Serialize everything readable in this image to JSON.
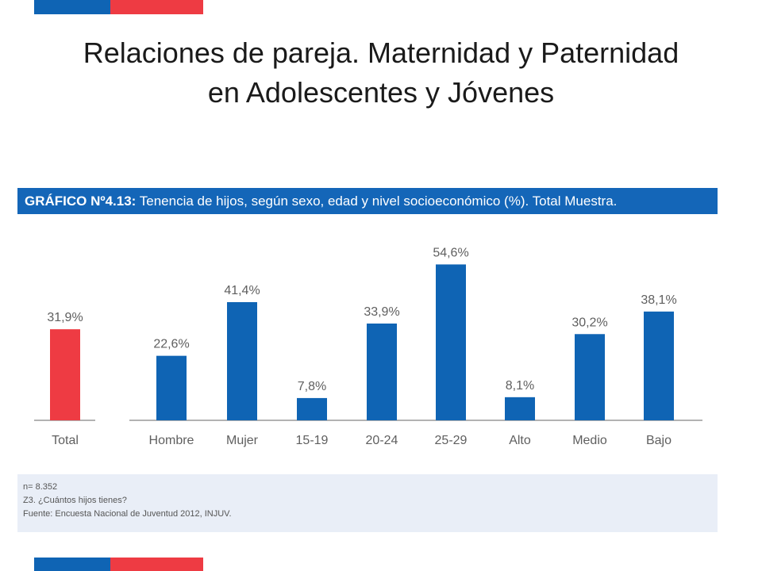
{
  "slide": {
    "title_line1": "Relaciones de pareja. Maternidad y Paternidad",
    "title_line2": "en Adolescentes y Jóvenes"
  },
  "colors": {
    "flag_blue": "#0f64b4",
    "flag_red": "#ee3b43",
    "bar_blue": "#0f64b4",
    "bar_red": "#ee3b43",
    "header_bg": "#1466b8",
    "notes_bg": "#e9eef7"
  },
  "chart_header": {
    "label": "GRÁFICO Nº4.13:",
    "text": "Tenencia de hijos, según sexo, edad y nivel socioeconómico (%). Total Muestra."
  },
  "chart_data": {
    "type": "bar",
    "title": "GRÁFICO Nº4.13: Tenencia de hijos, según sexo, edad y nivel socioeconómico (%). Total Muestra.",
    "categories": [
      "Total",
      "Hombre",
      "Mujer",
      "15-19",
      "20-24",
      "25-29",
      "Alto",
      "Medio",
      "Bajo"
    ],
    "values": [
      31.9,
      22.6,
      41.4,
      7.8,
      33.9,
      54.6,
      8.1,
      30.2,
      38.1
    ],
    "value_labels": [
      "31,9%",
      "22,6%",
      "41,4%",
      "7,8%",
      "33,9%",
      "54,6%",
      "8,1%",
      "30,2%",
      "38,1%"
    ],
    "highlight": [
      "Total"
    ],
    "ylim": [
      0,
      60
    ],
    "grid": false,
    "legend": "none"
  },
  "notes": {
    "line1": "n= 8.352",
    "line2": "Z3. ¿Cuántos hijos tienes?",
    "line3": "Fuente: Encuesta Nacional de Juventud 2012, INJUV."
  }
}
